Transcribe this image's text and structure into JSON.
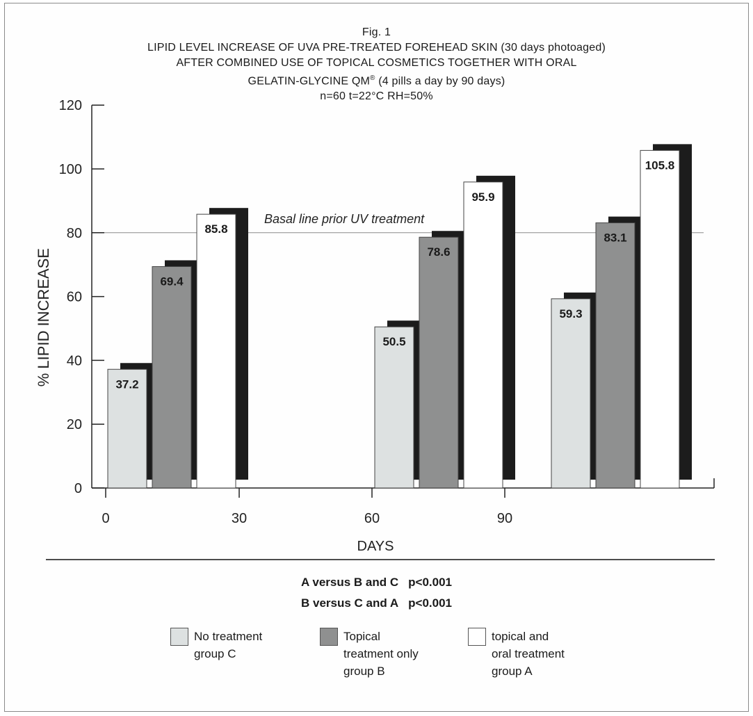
{
  "chart_data": {
    "type": "bar",
    "title_lines": [
      "Fig. 1",
      "LIPID LEVEL INCREASE OF UVA PRE-TREATED FOREHEAD SKIN (30 days photoaged)",
      "AFTER COMBINED USE OF TOPICAL COSMETICS TOGETHER WITH ORAL",
      "GELATIN-GLYCINE QM",
      "n=60   t=22°C   RH=50%"
    ],
    "title_superscript": "®",
    "title_line4_tail": " (4 pills a day by 90 days)",
    "xlabel": "DAYS",
    "ylabel": "% LIPID INCREASE",
    "x_ticks": [
      "0",
      "30",
      "60",
      "90"
    ],
    "y_ticks": [
      "0",
      "20",
      "40",
      "60",
      "80",
      "100",
      "120"
    ],
    "ylim": [
      0,
      120
    ],
    "reference_line": {
      "value": 80,
      "label": "Basal line prior UV treatment"
    },
    "series": [
      {
        "name": "No treatment group C",
        "color": "#dde1e1",
        "values": [
          37.2,
          50.5,
          59.3
        ]
      },
      {
        "name": "Topical treatment only group B",
        "color": "#8f9090",
        "values": [
          69.4,
          78.6,
          83.1
        ]
      },
      {
        "name": "topical and oral treatment group A",
        "color": "#ffffff",
        "values": [
          85.8,
          95.9,
          105.8
        ]
      }
    ],
    "value_labels": [
      [
        "37.2",
        "50.5",
        "59.3"
      ],
      [
        "69.4",
        "78.6",
        "83.1"
      ],
      [
        "85.8",
        "95.9",
        "105.8"
      ]
    ],
    "shadow_color": "#1c1c1c",
    "grid": false
  },
  "stats": [
    {
      "left": "A versus B and C",
      "right": "p<0.001"
    },
    {
      "left": "B versus C and A",
      "right": "p<0.001"
    }
  ],
  "legend": [
    {
      "text": "No treatment\ngroup C",
      "color": "#dde1e1"
    },
    {
      "text": "Topical\ntreatment only\ngroup B",
      "color": "#8f9090"
    },
    {
      "text": "topical and\noral treatment\ngroup A",
      "color": "#ffffff"
    }
  ]
}
